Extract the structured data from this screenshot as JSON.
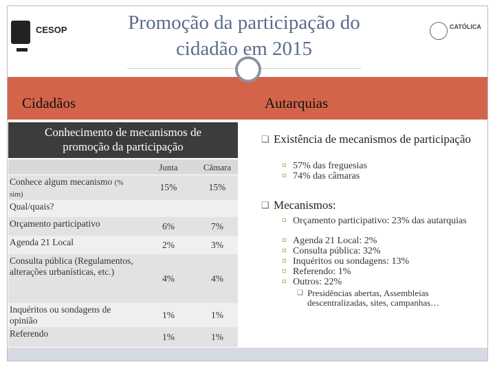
{
  "header": {
    "title_lines": [
      "Promoção da participação do",
      "cidadão em 2015"
    ],
    "logo_left": "CESOP",
    "logo_right": "CATÓLICA"
  },
  "band": {
    "left": "Cidadãos",
    "right": "Autarquias"
  },
  "left_panel": {
    "heading_lines": [
      "Conhecimento de mecanismos de",
      "promoção da participação"
    ],
    "table": {
      "columns": [
        "Junta",
        "Câmara"
      ],
      "rows": [
        {
          "label": "Conhece algum mecanismo",
          "note": "(% sim)",
          "values": [
            "15%",
            "15%"
          ]
        },
        {
          "label": "Qual/quais?"
        },
        {
          "label": "Orçamento participativo",
          "values": [
            "6%",
            "7%"
          ]
        },
        {
          "label": "Agenda 21 Local",
          "values": [
            "2%",
            "3%"
          ]
        },
        {
          "label": "Consulta pública (Regulamentos, alterações urbanísticas, etc.)",
          "values": [
            "4%",
            "4%"
          ]
        },
        {
          "label": "Inquéritos ou sondagens de opinião",
          "values": [
            "1%",
            "1%"
          ]
        },
        {
          "label": "Referendo",
          "values": [
            "1%",
            "1%"
          ]
        }
      ]
    }
  },
  "right_panel": {
    "sections": [
      {
        "heading": "Existência de mecanismos de participação",
        "items": [
          "57% das freguesias",
          "74% das câmaras"
        ]
      },
      {
        "heading": "Mecanismos:",
        "items": [
          "Orçamento participativo: 23% das autarquias",
          "Agenda 21 Local: 2%",
          "Consulta pública: 32%",
          "Inquéritos ou sondagens: 13%",
          "Referendo: 1%",
          "Outros: 22%"
        ],
        "subitems": [
          "Presidências abertas, Assembleias descentralizadas, sites, campanhas…"
        ]
      }
    ]
  }
}
